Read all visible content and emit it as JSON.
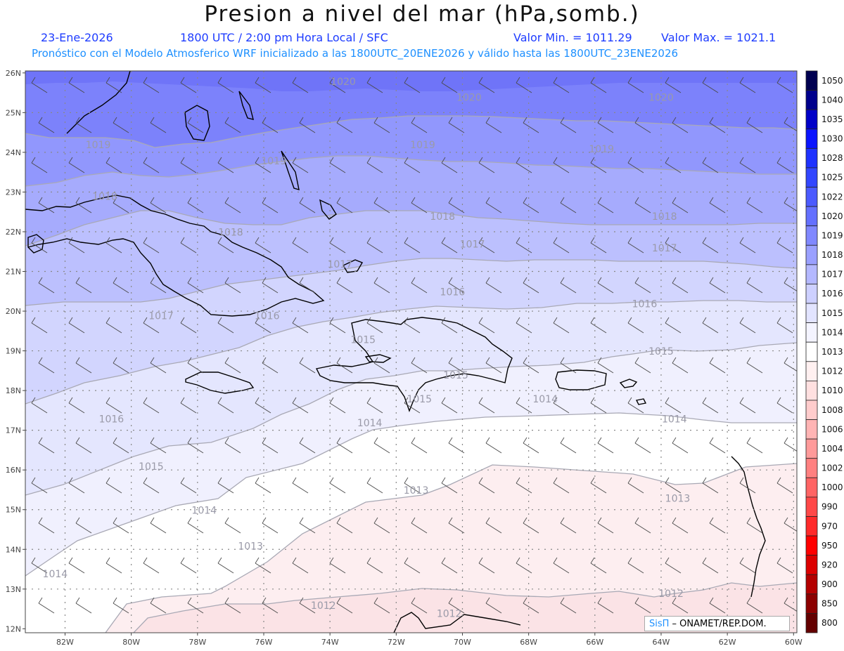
{
  "header": {
    "title": "Presion a nivel del mar (hPa,somb.)",
    "date": "23-Ene-2026",
    "time": "1800 UTC / 2:00 pm Hora Local / SFC",
    "min": "Valor Min. = 1011.29",
    "max": "Valor Max. = 1021.1",
    "info": "Pronóstico con el Modelo Atmosferico WRF inicializado a las 1800UTC_20ENE2026 y válido hasta las  1800UTC_23ENE2026"
  },
  "axes": {
    "lat_labels": [
      "26N",
      "25N",
      "24N",
      "23N",
      "22N",
      "21N",
      "20N",
      "19N",
      "18N",
      "17N",
      "16N",
      "15N",
      "14N",
      "13N",
      "12N"
    ],
    "lon_labels": [
      "82W",
      "80W",
      "78W",
      "76W",
      "74W",
      "72W",
      "70W",
      "68W",
      "66W",
      "64W",
      "62W",
      "60W"
    ]
  },
  "colorbar": {
    "labels": [
      "1050",
      "1040",
      "1035",
      "1030",
      "1028",
      "1025",
      "1022",
      "1020",
      "1019",
      "1018",
      "1017",
      "1016",
      "1015",
      "1014",
      "1013",
      "1012",
      "1010",
      "1008",
      "1006",
      "1004",
      "1002",
      "1000",
      "990",
      "970",
      "950",
      "920",
      "900",
      "850",
      "800"
    ],
    "colors": [
      "#000050",
      "#00008c",
      "#0000c8",
      "#0a14ff",
      "#1e32ff",
      "#3246ff",
      "#4b5aff",
      "#6470ff",
      "#8088ff",
      "#9aa0ff",
      "#b4b8ff",
      "#cdd0ff",
      "#e2e4ff",
      "#f4f4ff",
      "#ffffff",
      "#fff0f0",
      "#ffe0e0",
      "#ffcccc",
      "#ffb4b4",
      "#ff9a9a",
      "#ff8080",
      "#ff6464",
      "#ff4848",
      "#ff2a2a",
      "#ff0000",
      "#dc0000",
      "#b40000",
      "#8c0000",
      "#640000"
    ]
  },
  "contour_labels": [
    {
      "text": "1020",
      "lon": -73.6,
      "lat": 25.7
    },
    {
      "text": "1020",
      "lon": -69.8,
      "lat": 25.3
    },
    {
      "text": "1020",
      "lon": -64.0,
      "lat": 25.3
    },
    {
      "text": "1019",
      "lon": -81.0,
      "lat": 24.1
    },
    {
      "text": "1019",
      "lon": -75.7,
      "lat": 23.7
    },
    {
      "text": "1019",
      "lon": -71.2,
      "lat": 24.1
    },
    {
      "text": "1019",
      "lon": -65.8,
      "lat": 24.0
    },
    {
      "text": "1018",
      "lon": -80.8,
      "lat": 22.8
    },
    {
      "text": "1018",
      "lon": -77.0,
      "lat": 21.9
    },
    {
      "text": "1018",
      "lon": -70.6,
      "lat": 22.3
    },
    {
      "text": "1018",
      "lon": -63.9,
      "lat": 22.3
    },
    {
      "text": "1017",
      "lon": -69.7,
      "lat": 21.6
    },
    {
      "text": "1017",
      "lon": -73.7,
      "lat": 21.1
    },
    {
      "text": "1017",
      "lon": -63.9,
      "lat": 21.5
    },
    {
      "text": "1017",
      "lon": -79.1,
      "lat": 19.8
    },
    {
      "text": "1016",
      "lon": -70.3,
      "lat": 20.4
    },
    {
      "text": "1016",
      "lon": -64.5,
      "lat": 20.1
    },
    {
      "text": "1016",
      "lon": -75.9,
      "lat": 19.8
    },
    {
      "text": "1016",
      "lon": -80.6,
      "lat": 17.2
    },
    {
      "text": "1015",
      "lon": -73.0,
      "lat": 19.2
    },
    {
      "text": "1015",
      "lon": -64.0,
      "lat": 18.9
    },
    {
      "text": "1015",
      "lon": -70.2,
      "lat": 18.3
    },
    {
      "text": "1015",
      "lon": -71.3,
      "lat": 17.7
    },
    {
      "text": "1015",
      "lon": -79.4,
      "lat": 16.0
    },
    {
      "text": "1014",
      "lon": -67.5,
      "lat": 17.7
    },
    {
      "text": "1014",
      "lon": -63.6,
      "lat": 17.2
    },
    {
      "text": "1014",
      "lon": -72.8,
      "lat": 17.1
    },
    {
      "text": "1014",
      "lon": -77.8,
      "lat": 14.9
    },
    {
      "text": "1014",
      "lon": -82.3,
      "lat": 13.3
    },
    {
      "text": "1013",
      "lon": -71.4,
      "lat": 15.4
    },
    {
      "text": "1013",
      "lon": -63.5,
      "lat": 15.2
    },
    {
      "text": "1013",
      "lon": -76.4,
      "lat": 14.0
    },
    {
      "text": "1012",
      "lon": -74.2,
      "lat": 12.5
    },
    {
      "text": "1012",
      "lon": -70.4,
      "lat": 12.3
    },
    {
      "text": "1012",
      "lon": -63.7,
      "lat": 12.8
    }
  ],
  "credit": {
    "brand": "SisΠ",
    "text": " – ONAMET/REP.DOM."
  }
}
